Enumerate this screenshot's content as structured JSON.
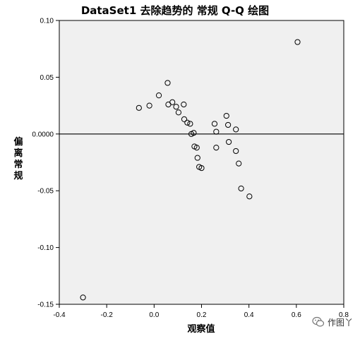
{
  "chart_data": {
    "type": "scatter",
    "title": "DataSet1 去除趋势的 常规 Q-Q 绘图",
    "xlabel": "观察值",
    "ylabel": "偏离常规",
    "xlim": [
      -0.4,
      0.8
    ],
    "ylim": [
      -0.15,
      0.1
    ],
    "x_ticks": [
      -0.4,
      -0.2,
      0.0,
      0.2,
      0.4,
      0.6,
      0.8
    ],
    "x_tick_labels": [
      "-0.4",
      "-0.2",
      "0.0",
      "0.2",
      "0.4",
      "0.6",
      "0.8"
    ],
    "y_ticks": [
      0.1,
      0.05,
      0.0,
      -0.05,
      -0.1,
      -0.15
    ],
    "y_tick_labels": [
      "0.10",
      "0.05",
      "0.0000",
      "-0.05",
      "-0.10",
      "-0.15"
    ],
    "reference_line_y": 0,
    "plot_background": "#f0f0f0",
    "point_color": "#000000",
    "points": [
      {
        "x": -0.3,
        "y": -0.144
      },
      {
        "x": -0.064,
        "y": 0.023
      },
      {
        "x": -0.02,
        "y": 0.025
      },
      {
        "x": 0.02,
        "y": 0.034
      },
      {
        "x": 0.057,
        "y": 0.045
      },
      {
        "x": 0.06,
        "y": 0.026
      },
      {
        "x": 0.077,
        "y": 0.028
      },
      {
        "x": 0.093,
        "y": 0.024
      },
      {
        "x": 0.103,
        "y": 0.019
      },
      {
        "x": 0.125,
        "y": 0.026
      },
      {
        "x": 0.127,
        "y": 0.013
      },
      {
        "x": 0.14,
        "y": 0.01
      },
      {
        "x": 0.152,
        "y": 0.009
      },
      {
        "x": 0.157,
        "y": 0.0
      },
      {
        "x": 0.167,
        "y": 0.001
      },
      {
        "x": 0.17,
        "y": -0.011
      },
      {
        "x": 0.18,
        "y": -0.012
      },
      {
        "x": 0.183,
        "y": -0.021
      },
      {
        "x": 0.19,
        "y": -0.029
      },
      {
        "x": 0.2,
        "y": -0.03
      },
      {
        "x": 0.255,
        "y": 0.009
      },
      {
        "x": 0.262,
        "y": 0.002
      },
      {
        "x": 0.262,
        "y": -0.012
      },
      {
        "x": 0.305,
        "y": 0.016
      },
      {
        "x": 0.312,
        "y": 0.008
      },
      {
        "x": 0.315,
        "y": -0.007
      },
      {
        "x": 0.345,
        "y": 0.004
      },
      {
        "x": 0.345,
        "y": -0.015
      },
      {
        "x": 0.357,
        "y": -0.026
      },
      {
        "x": 0.367,
        "y": -0.048
      },
      {
        "x": 0.402,
        "y": -0.055
      },
      {
        "x": 0.605,
        "y": 0.081
      }
    ]
  },
  "watermark": {
    "text": "作图丫",
    "icon": "wechat-icon"
  }
}
